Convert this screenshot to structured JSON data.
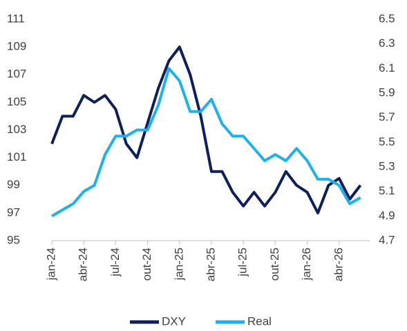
{
  "chart_data": {
    "type": "line",
    "categories": [
      "jan-24",
      null,
      null,
      "abr-24",
      null,
      null,
      "jul-24",
      null,
      null,
      "out-24",
      null,
      null,
      "jan-25",
      null,
      null,
      "abr-25",
      null,
      null,
      "jul-25",
      null,
      null,
      "out-25",
      null,
      null,
      "jan-26",
      null,
      null,
      "abr-26",
      null,
      null
    ],
    "series": [
      {
        "name": "DXY",
        "color": "#0c1f5e",
        "values": [
          102,
          104,
          104,
          105.5,
          105,
          105.5,
          104.5,
          102,
          101,
          103.5,
          106,
          108,
          109,
          107,
          104,
          100,
          100,
          98.5,
          97.5,
          98.5,
          97.5,
          98.5,
          100,
          99,
          98.5,
          97,
          99,
          99.5,
          98,
          99
        ]
      },
      {
        "name": "Real",
        "color": "#1ab2ea",
        "axis": "y2",
        "values": [
          4.9,
          4.95,
          5.0,
          5.1,
          5.15,
          5.4,
          5.55,
          5.55,
          5.6,
          5.6,
          5.8,
          6.1,
          6.0,
          5.75,
          5.75,
          5.85,
          5.65,
          5.55,
          5.55,
          5.45,
          5.35,
          5.4,
          5.35,
          5.45,
          5.35,
          5.2,
          5.2,
          5.15,
          5.0,
          5.05
        ]
      }
    ],
    "ylim": [
      95,
      111
    ],
    "yticks": [
      95,
      97,
      99,
      101,
      103,
      105,
      107,
      109,
      111
    ],
    "y2lim": [
      4.7,
      6.5
    ],
    "y2ticks": [
      4.7,
      4.9,
      5.1,
      5.3,
      5.5,
      5.7,
      5.9,
      6.1,
      6.3,
      6.5
    ],
    "legend": "bottom"
  }
}
